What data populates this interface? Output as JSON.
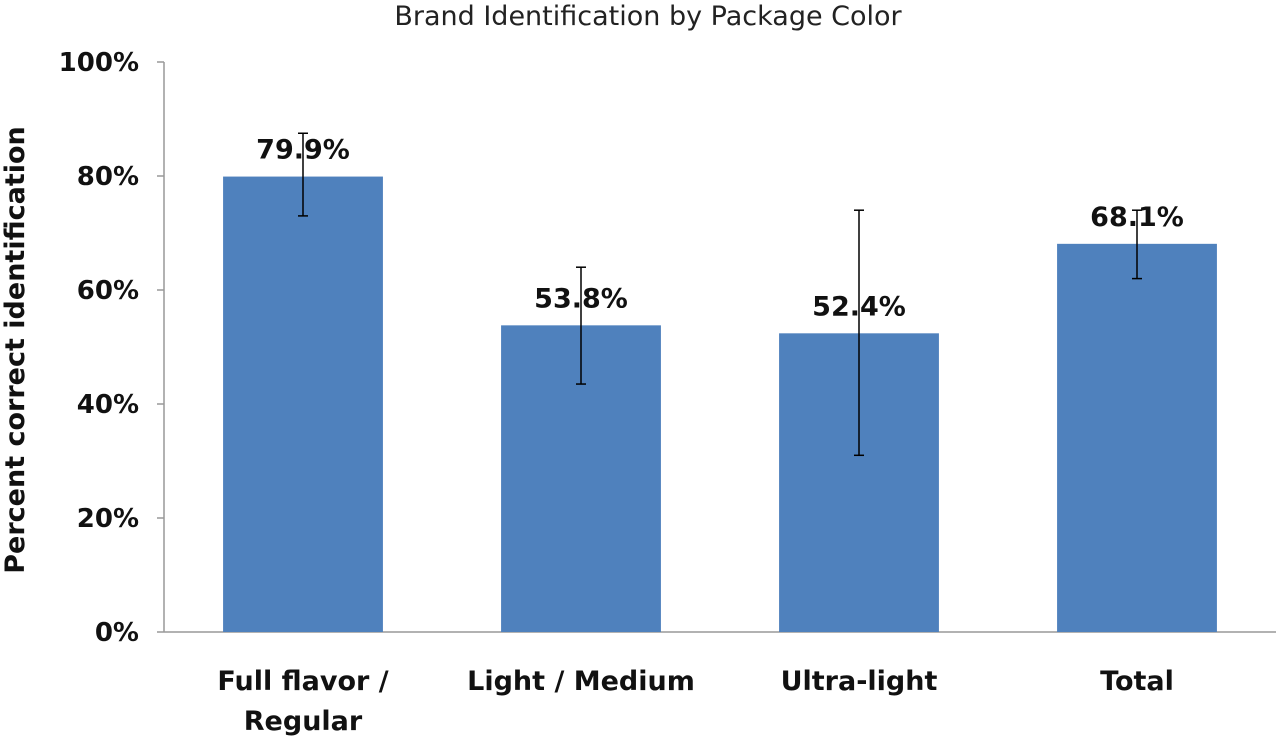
{
  "chart_data": {
    "type": "bar",
    "title": "Brand Identification by Package Color",
    "ylabel": "Percent correct identification",
    "xlabel": "",
    "ylim": [
      0,
      100
    ],
    "yticks": [
      0,
      20,
      40,
      60,
      80,
      100
    ],
    "ytick_labels": [
      "0%",
      "20%",
      "40%",
      "60%",
      "80%",
      "100%"
    ],
    "categories": [
      [
        "Full flavor /",
        "Regular"
      ],
      [
        "Light / Medium"
      ],
      [
        "Ultra-light"
      ],
      [
        "Total"
      ]
    ],
    "values": [
      79.9,
      53.8,
      52.4,
      68.1
    ],
    "data_labels": [
      "79.9%",
      "53.8%",
      "52.4%",
      "68.1%"
    ],
    "error_bars": [
      {
        "low": 73.0,
        "high": 87.5
      },
      {
        "low": 43.5,
        "high": 64.0
      },
      {
        "low": 31.0,
        "high": 74.0
      },
      {
        "low": 62.0,
        "high": 74.0
      }
    ],
    "grid": false,
    "legend": "none",
    "bar_color": "#4f81bd"
  }
}
